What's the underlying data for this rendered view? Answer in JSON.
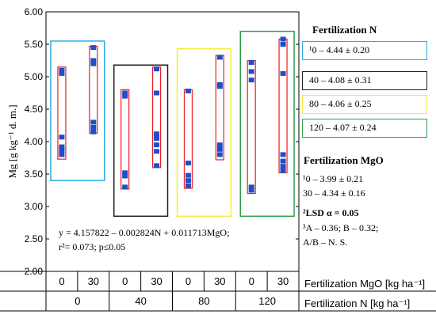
{
  "chart_data": {
    "type": "box",
    "ylabel": "Mg [g kg⁻¹ d. m.]",
    "ylim": [
      2.0,
      6.0
    ],
    "yticks": [
      "6.00",
      "5.50",
      "5.00",
      "4.50",
      "4.00",
      "3.50",
      "3.00",
      "2.50",
      "2.00"
    ],
    "x_rows": [
      {
        "label": "Fertilization MgO [kg ha⁻¹]",
        "ticks": [
          "0",
          "30",
          "0",
          "30",
          "0",
          "30",
          "0",
          "30"
        ]
      },
      {
        "label": "Fertilization N [kg ha⁻¹]",
        "ticks": [
          "0",
          "40",
          "80",
          "120"
        ]
      }
    ],
    "groups": [
      {
        "N": "0",
        "color": "#29abe2",
        "group_range": [
          3.4,
          5.55
        ],
        "boxes": [
          {
            "MgO": "0",
            "min": 3.73,
            "max": 5.15,
            "points": [
              5.1,
              5.05,
              4.07,
              3.92,
              3.87,
              3.8
            ]
          },
          {
            "MgO": "30",
            "min": 4.13,
            "max": 5.47,
            "points": [
              5.45,
              5.25,
              5.2,
              4.3,
              4.22,
              4.15
            ]
          }
        ]
      },
      {
        "N": "40",
        "color": "#231f20",
        "group_range": [
          2.85,
          5.18
        ],
        "boxes": [
          {
            "MgO": "0",
            "min": 3.27,
            "max": 4.8,
            "points": [
              4.75,
              4.7,
              3.52,
              3.47,
              3.3
            ]
          },
          {
            "MgO": "30",
            "min": 3.6,
            "max": 5.15,
            "points": [
              5.12,
              4.75,
              4.12,
              4.05,
              3.95,
              3.85,
              3.63
            ]
          }
        ]
      },
      {
        "N": "80",
        "color": "#f5ec3c",
        "group_range": [
          2.85,
          5.43
        ],
        "boxes": [
          {
            "MgO": "0",
            "min": 3.28,
            "max": 4.8,
            "points": [
              4.78,
              3.67,
              3.48,
              3.4,
              3.32
            ]
          },
          {
            "MgO": "30",
            "min": 3.72,
            "max": 5.33,
            "points": [
              5.3,
              4.88,
              4.85,
              3.95,
              3.88,
              3.8
            ]
          }
        ]
      },
      {
        "N": "120",
        "color": "#2e9e48",
        "group_range": [
          2.85,
          5.7
        ],
        "boxes": [
          {
            "MgO": "0",
            "min": 3.2,
            "max": 5.25,
            "points": [
              5.22,
              5.08,
              4.95,
              3.3,
              3.25
            ]
          },
          {
            "MgO": "30",
            "min": 3.52,
            "max": 5.58,
            "points": [
              5.58,
              5.5,
              5.05,
              3.8,
              3.7,
              3.62,
              3.55
            ]
          }
        ]
      }
    ],
    "equation": [
      "y = 4.157822 – 0.002824N + 0.011713MgO;",
      "r²= 0.073; p≤0.05"
    ],
    "colors": {
      "box_outline": "#ee1c24",
      "points": "#1f4ec8",
      "axes": "#000000"
    }
  },
  "legend": {
    "title_n": "Fertilization N",
    "entries": [
      {
        "text": "¹0 – 4.44 ± 0.20",
        "color": "#29abe2"
      },
      {
        "text": "40 – 4.08 ± 0.31",
        "color": "#231f20"
      },
      {
        "text": "80 – 4.06 ± 0.25",
        "color": "#f5ec3c"
      },
      {
        "text": "120 – 4.07 ± 0.24",
        "color": "#2e9e48"
      }
    ],
    "title_mgo": "Fertilization MgO",
    "mgo_entries": [
      "¹0 – 3.99 ± 0.21",
      "30 – 4.34 ± 0.16"
    ],
    "lsd_title": "²LSD α = 0.05",
    "lsd_lines": [
      "³A – 0.36; B – 0.32;",
      "A/B – N. S."
    ]
  }
}
